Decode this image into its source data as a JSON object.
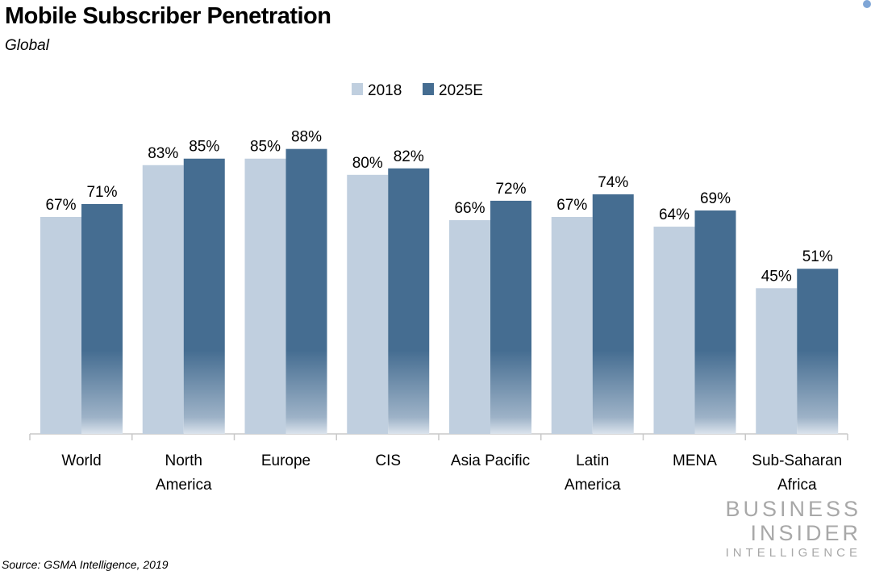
{
  "title": "Mobile Subscriber Penetration",
  "subtitle": "Global",
  "source": "Source: GSMA Intelligence, 2019",
  "logo": {
    "line1": "BUSINESS",
    "line2": "INSIDER",
    "line3": "INTELLIGENCE"
  },
  "chart_data": {
    "type": "bar",
    "title": "Mobile Subscriber Penetration",
    "subtitle": "Global",
    "categories": [
      [
        "World"
      ],
      [
        "North",
        "America"
      ],
      [
        "Europe"
      ],
      [
        "CIS"
      ],
      [
        "Asia Pacific"
      ],
      [
        "Latin",
        "America"
      ],
      [
        "MENA"
      ],
      [
        "Sub-Saharan",
        "Africa"
      ]
    ],
    "series": [
      {
        "name": "2018",
        "values": [
          67,
          83,
          85,
          80,
          66,
          67,
          64,
          45
        ],
        "color": "#c0cfdf"
      },
      {
        "name": "2025E",
        "values": [
          71,
          85,
          88,
          82,
          72,
          74,
          69,
          51
        ],
        "color": "#456d91"
      }
    ],
    "value_format": "{v}%",
    "ylim": [
      0,
      100
    ],
    "grid": false,
    "legend": "top-center"
  }
}
